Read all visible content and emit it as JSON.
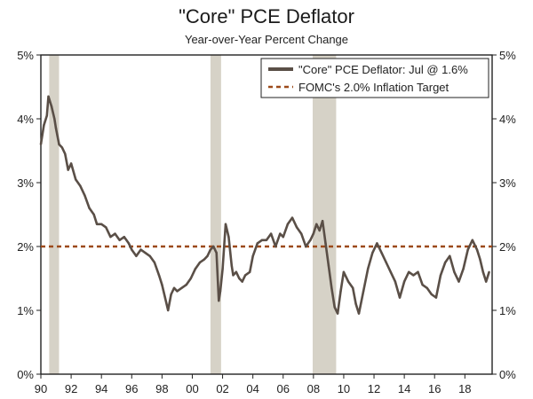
{
  "chart_data": {
    "type": "line",
    "title": "\"Core\" PCE Deflator",
    "subtitle": "Year-over-Year Percent Change",
    "xlabel": "",
    "ylabel": "",
    "xlim": [
      1990.0,
      2019.8
    ],
    "ylim": [
      0,
      5
    ],
    "x_tick_labels": [
      "90",
      "92",
      "94",
      "96",
      "98",
      "00",
      "02",
      "04",
      "06",
      "08",
      "10",
      "12",
      "14",
      "16",
      "18"
    ],
    "x_tick_years": [
      1990,
      1992,
      1994,
      1996,
      1998,
      2000,
      2002,
      2004,
      2006,
      2008,
      2010,
      2012,
      2014,
      2016,
      2018
    ],
    "y_tick_values": [
      0,
      1,
      2,
      3,
      4,
      5
    ],
    "y_tick_labels": [
      "0%",
      "1%",
      "2%",
      "3%",
      "4%",
      "5%"
    ],
    "recessions": [
      [
        1990.55,
        1991.2
      ],
      [
        2001.2,
        2001.9
      ],
      [
        2007.95,
        2009.5
      ]
    ],
    "target": {
      "name": "FOMC's 2.0% Inflation Target",
      "value": 2.0,
      "color": "#9c4a1a"
    },
    "series": [
      {
        "name": "\"Core\" PCE Deflator: Jul @ 1.6%",
        "color": "#5a4f47",
        "x": [
          1990.0,
          1990.2,
          1990.4,
          1990.5,
          1990.7,
          1990.9,
          1991.0,
          1991.2,
          1991.4,
          1991.6,
          1991.8,
          1992.0,
          1992.3,
          1992.6,
          1992.9,
          1993.2,
          1993.5,
          1993.7,
          1994.0,
          1994.3,
          1994.6,
          1994.9,
          1995.2,
          1995.5,
          1995.8,
          1996.0,
          1996.3,
          1996.6,
          1996.9,
          1997.2,
          1997.5,
          1997.8,
          1998.0,
          1998.2,
          1998.4,
          1998.6,
          1998.8,
          1999.0,
          1999.3,
          1999.6,
          1999.9,
          2000.2,
          2000.5,
          2000.8,
          2001.0,
          2001.2,
          2001.4,
          2001.6,
          2001.75,
          2001.85,
          2002.0,
          2002.2,
          2002.4,
          2002.6,
          2002.7,
          2002.9,
          2003.1,
          2003.3,
          2003.5,
          2003.8,
          2004.0,
          2004.3,
          2004.6,
          2004.9,
          2005.2,
          2005.5,
          2005.8,
          2006.0,
          2006.3,
          2006.6,
          2006.9,
          2007.2,
          2007.5,
          2007.8,
          2008.0,
          2008.2,
          2008.4,
          2008.6,
          2008.8,
          2009.0,
          2009.2,
          2009.4,
          2009.6,
          2009.8,
          2010.0,
          2010.3,
          2010.6,
          2010.8,
          2011.0,
          2011.3,
          2011.6,
          2011.9,
          2012.2,
          2012.5,
          2012.8,
          2013.1,
          2013.4,
          2013.7,
          2014.0,
          2014.3,
          2014.6,
          2014.9,
          2015.2,
          2015.5,
          2015.8,
          2016.1,
          2016.4,
          2016.7,
          2017.0,
          2017.3,
          2017.6,
          2017.9,
          2018.2,
          2018.5,
          2018.8,
          2019.0,
          2019.2,
          2019.4,
          2019.6
        ],
        "values": [
          3.6,
          3.9,
          4.05,
          4.35,
          4.2,
          4.0,
          3.85,
          3.6,
          3.55,
          3.45,
          3.2,
          3.3,
          3.05,
          2.95,
          2.8,
          2.6,
          2.5,
          2.35,
          2.35,
          2.3,
          2.15,
          2.2,
          2.1,
          2.15,
          2.05,
          1.95,
          1.85,
          1.95,
          1.9,
          1.85,
          1.75,
          1.55,
          1.4,
          1.2,
          1.0,
          1.25,
          1.35,
          1.3,
          1.35,
          1.4,
          1.5,
          1.65,
          1.75,
          1.8,
          1.85,
          1.95,
          2.0,
          1.9,
          1.15,
          1.3,
          1.65,
          2.35,
          2.15,
          1.7,
          1.55,
          1.6,
          1.5,
          1.45,
          1.55,
          1.6,
          1.85,
          2.05,
          2.1,
          2.1,
          2.2,
          2.0,
          2.2,
          2.15,
          2.35,
          2.45,
          2.3,
          2.2,
          2.0,
          2.1,
          2.2,
          2.35,
          2.25,
          2.4,
          2.05,
          1.7,
          1.35,
          1.05,
          0.95,
          1.3,
          1.6,
          1.45,
          1.35,
          1.1,
          0.95,
          1.3,
          1.65,
          1.9,
          2.05,
          1.9,
          1.75,
          1.6,
          1.45,
          1.2,
          1.45,
          1.6,
          1.55,
          1.6,
          1.4,
          1.35,
          1.25,
          1.2,
          1.55,
          1.75,
          1.85,
          1.6,
          1.45,
          1.65,
          1.95,
          2.1,
          1.95,
          1.8,
          1.6,
          1.45,
          1.6
        ]
      }
    ]
  }
}
